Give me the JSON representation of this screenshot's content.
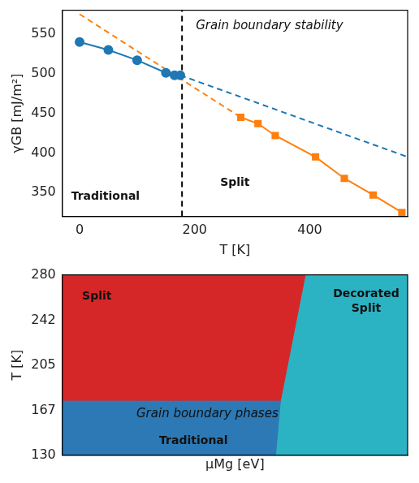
{
  "chart_data": [
    {
      "type": "line",
      "x_label": "T [K]",
      "y_label": "γGB [mJ/m²]",
      "xlim": [
        -30,
        570
      ],
      "xticks": [
        0,
        200,
        400
      ],
      "ylim": [
        320,
        580
      ],
      "yticks": [
        350,
        400,
        450,
        500,
        550
      ],
      "grid": false,
      "series": [
        {
          "name": "Traditional",
          "color": "#1f77b4",
          "marker": "circle",
          "line_style": "solid",
          "x": [
            0,
            50,
            100,
            150,
            165,
            175
          ],
          "values": [
            540,
            530,
            517,
            501,
            498,
            498
          ]
        },
        {
          "name": "Split",
          "color": "#ff7f0e",
          "marker": "square",
          "line_style": "solid",
          "x": [
            280,
            310,
            340,
            410,
            460,
            510,
            560
          ],
          "values": [
            445,
            437,
            422,
            395,
            368,
            347,
            325
          ]
        },
        {
          "color": "#1f77b4",
          "marker": "none",
          "line_style": "dashed",
          "x": [
            175,
            570
          ],
          "values": [
            498,
            395
          ]
        },
        {
          "color": "#ff7f0e",
          "marker": "none",
          "line_style": "dashed",
          "x": [
            0,
            280
          ],
          "values": [
            575,
            445
          ]
        },
        {
          "color": "#000000",
          "marker": "none",
          "line_style": "dashed",
          "x": [
            178,
            178
          ],
          "values": [
            320,
            580
          ]
        }
      ],
      "labels": [
        {
          "text": "Traditional",
          "x": 45,
          "y": 345
        },
        {
          "text": "Split",
          "x": 270,
          "y": 362
        }
      ],
      "annotations": [
        {
          "text": "Grain boundary stability",
          "x": 330,
          "y": 560
        }
      ]
    },
    {
      "type": "area",
      "x_label": "μMg [eV]",
      "y_label": "T [K]",
      "xlim": [
        0,
        1
      ],
      "ylim": [
        130,
        280
      ],
      "yticks": [
        130,
        167,
        205,
        242,
        280
      ],
      "tick_labels": "y",
      "grid": false,
      "regions": [
        {
          "color": "#d62728",
          "x": [
            0,
            0.706,
            0.634,
            0
          ],
          "values": [
            280,
            280,
            175,
            175
          ]
        },
        {
          "color": "#2d79b5",
          "x": [
            0,
            0.634,
            0.62,
            0
          ],
          "values": [
            175,
            175,
            130,
            130
          ]
        },
        {
          "color": "#2bb3c4",
          "x": [
            0.706,
            1,
            1,
            0.62,
            0.634
          ],
          "values": [
            280,
            280,
            130,
            130,
            175
          ]
        }
      ],
      "labels": [
        {
          "text": "Split",
          "x": 0.1,
          "y": 262
        },
        {
          "text": "Decorated Split",
          "x": 0.88,
          "y": 258
        },
        {
          "text": "Traditional",
          "x": 0.38,
          "y": 142
        }
      ],
      "annotations": [
        {
          "text": "Grain boundary phases",
          "x": 0.42,
          "y": 164
        }
      ]
    }
  ]
}
